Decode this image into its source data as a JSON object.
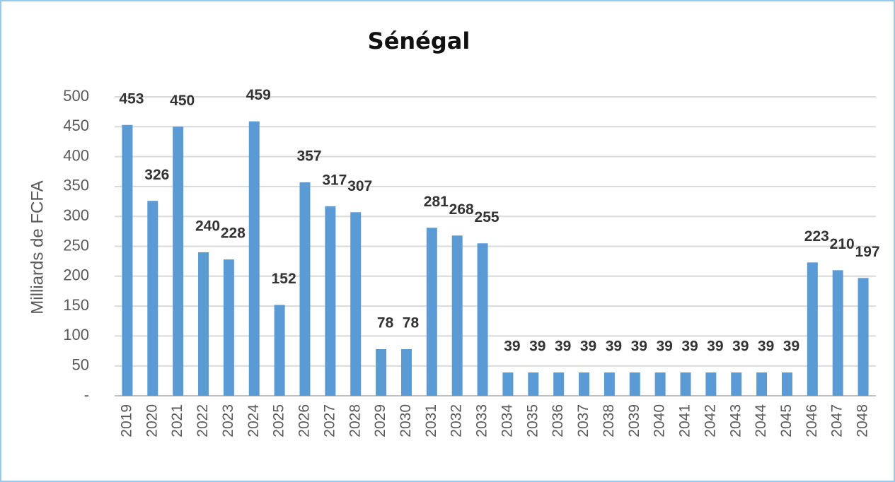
{
  "chart_data": {
    "type": "bar",
    "title": "Sénégal",
    "y_label": "Milliards de FCFA",
    "categories": [
      "2019",
      "2020",
      "2021",
      "2022",
      "2023",
      "2024",
      "2025",
      "2026",
      "2027",
      "2028",
      "2029",
      "2030",
      "2031",
      "2032",
      "2033",
      "2034",
      "2035",
      "2036",
      "2037",
      "2038",
      "2039",
      "2040",
      "2041",
      "2042",
      "2043",
      "2044",
      "2045",
      "2046",
      "2047",
      "2048"
    ],
    "values": [
      453,
      326,
      450,
      240,
      228,
      459,
      152,
      357,
      317,
      307,
      78,
      78,
      281,
      268,
      255,
      39,
      39,
      39,
      39,
      39,
      39,
      39,
      39,
      39,
      39,
      39,
      39,
      223,
      210,
      197
    ],
    "color": "#5b9bd5",
    "ylim": [
      0,
      500
    ],
    "yticks": [
      {
        "value": 0,
        "label": "-"
      },
      50,
      100,
      150,
      200,
      250,
      300,
      350,
      400,
      450,
      500
    ],
    "grid": true
  }
}
